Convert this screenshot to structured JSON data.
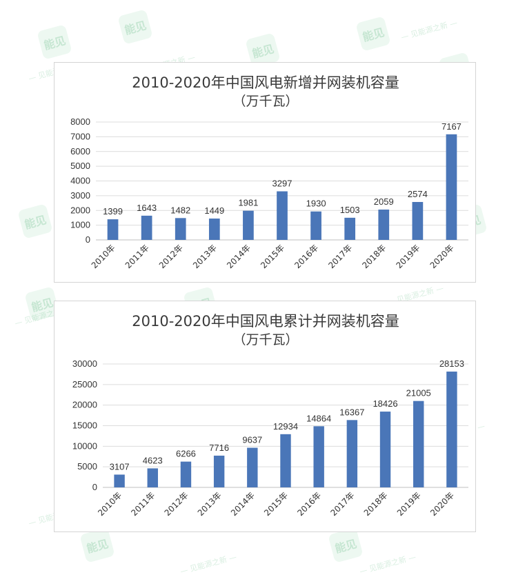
{
  "watermark": {
    "logo_text": "能见",
    "tagline": "— 见能源之新 —"
  },
  "chart_data": [
    {
      "type": "bar",
      "title_line1": "2010-2020年中国风电新增并网装机容量",
      "title_line2": "（万千瓦）",
      "categories": [
        "2010年",
        "2011年",
        "2012年",
        "2013年",
        "2014年",
        "2015年",
        "2016年",
        "2017年",
        "2018年",
        "2019年",
        "2020年"
      ],
      "values": [
        1399,
        1643,
        1482,
        1449,
        1981,
        3297,
        1930,
        1503,
        2059,
        2574,
        7167
      ],
      "yticks": [
        "0",
        "1000",
        "2000",
        "3000",
        "4000",
        "5000",
        "6000",
        "7000",
        "8000"
      ],
      "ylim": [
        0,
        8000
      ],
      "bar_color": "#4a76b8",
      "grid": true,
      "legend": "none"
    },
    {
      "type": "bar",
      "title_line1": "2010-2020年中国风电累计并网装机容量",
      "title_line2": "（万千瓦）",
      "categories": [
        "2010年",
        "2011年",
        "2012年",
        "2013年",
        "2014年",
        "2015年",
        "2016年",
        "2017年",
        "2018年",
        "2019年",
        "2020年"
      ],
      "values": [
        3107,
        4623,
        6266,
        7716,
        9637,
        12934,
        14864,
        16367,
        18426,
        21005,
        28153
      ],
      "yticks": [
        "0",
        "5000",
        "10000",
        "15000",
        "20000",
        "25000",
        "30000"
      ],
      "ylim": [
        0,
        30000
      ],
      "bar_color": "#4a76b8",
      "grid": true,
      "legend": "none"
    }
  ]
}
